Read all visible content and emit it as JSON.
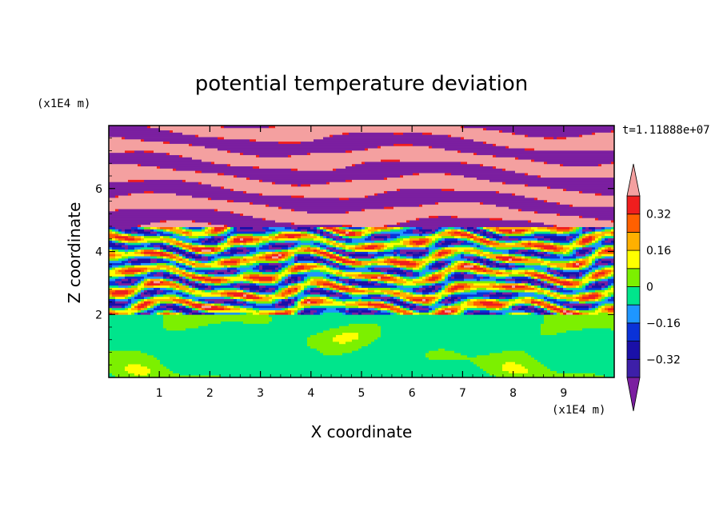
{
  "chart_data": {
    "type": "heatmap",
    "title": "potential temperature deviation",
    "xlabel": "X coordinate",
    "ylabel": "Z coordinate",
    "x_unit": "(x1E4 m)",
    "y_unit": "(x1E4 m)",
    "time_label": "t=1.11888e+07",
    "xlim": [
      0,
      10
    ],
    "ylim": [
      0,
      8
    ],
    "x_ticks": [
      "1",
      "2",
      "3",
      "4",
      "5",
      "6",
      "7",
      "8",
      "9"
    ],
    "y_ticks": [
      "2",
      "4",
      "6"
    ],
    "colorbar": {
      "tick_labels": [
        "0.32",
        "0.16",
        "0",
        "-0.16",
        "-0.32"
      ],
      "tick_values": [
        0.32,
        0.16,
        0,
        -0.16,
        -0.32
      ],
      "levels": [
        -0.4,
        -0.32,
        -0.24,
        -0.16,
        -0.08,
        0,
        0.08,
        0.16,
        0.24,
        0.32,
        0.4
      ],
      "colors": [
        "#7b1fa0",
        "#3d1fa8",
        "#1a10a8",
        "#0a32d8",
        "#1e96ff",
        "#00e58c",
        "#7cf000",
        "#ffff00",
        "#ffb000",
        "#ff6000",
        "#f01e1e",
        "#f4a0a0"
      ]
    },
    "layers": [
      {
        "z_range": [
          0,
          2.0
        ],
        "description_colors": [
          "#00e58c",
          "#7cf000",
          "#ffff00"
        ],
        "mean": 0.04
      },
      {
        "z_range": [
          2.0,
          4.8
        ],
        "description_colors": [
          "#3d1fa8",
          "#1a10a8",
          "#0a32d8",
          "#1e96ff",
          "#00e58c",
          "#7cf000",
          "#ffff00",
          "#ffb000",
          "#ff6000",
          "#f01e1e",
          "#f4a0a0",
          "#7b1fa0"
        ],
        "mean": 0.0
      },
      {
        "z_range": [
          4.8,
          8.0
        ],
        "description_colors": [
          "#7b1fa0",
          "#f4a0a0"
        ],
        "mean": 0.0
      }
    ]
  }
}
